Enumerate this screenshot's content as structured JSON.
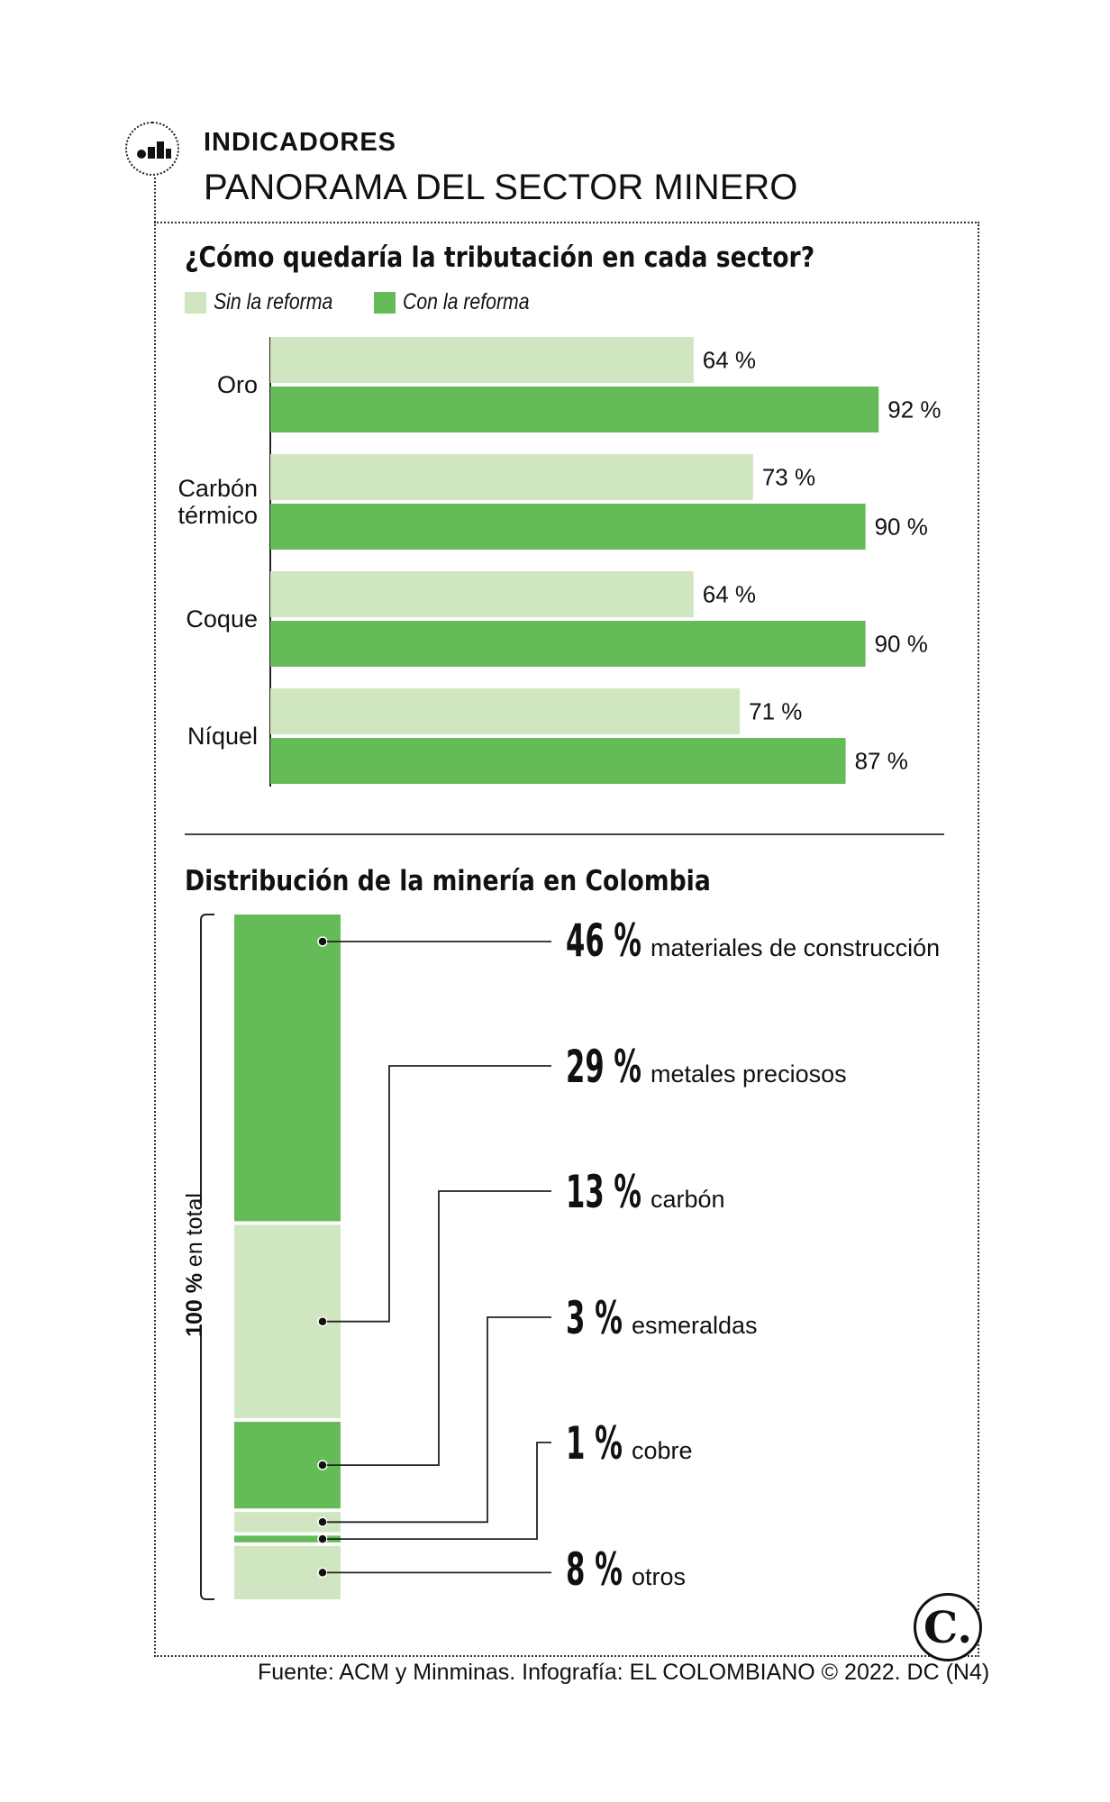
{
  "header": {
    "kicker": "INDICADORES",
    "title": "PANORAMA DEL SECTOR MINERO",
    "icon": "bar-chart-icon"
  },
  "colors": {
    "light_green": "#cfe6c0",
    "dark_green": "#66bb59",
    "text": "#111111"
  },
  "footer": "Fuente: ACM y Minminas. Infografía: EL COLOMBIANO © 2022. DC (N4)",
  "logo": {
    "letter": "C."
  },
  "chart_data": [
    {
      "type": "bar",
      "orientation": "horizontal",
      "title": "¿Cómo quedaría la tributación en cada sector?",
      "categories": [
        "Oro",
        "Carbón térmico",
        "Coque",
        "Níquel"
      ],
      "category_lines": [
        [
          "Oro"
        ],
        [
          "Carbón",
          "térmico"
        ],
        [
          "Coque"
        ],
        [
          "Níquel"
        ]
      ],
      "series": [
        {
          "name": "Sin la reforma",
          "values": [
            64,
            73,
            64,
            71
          ],
          "labels": [
            "64 %",
            "73 %",
            "64 %",
            "71 %"
          ],
          "color": "#cfe6c0"
        },
        {
          "name": "Con la reforma",
          "values": [
            92,
            90,
            90,
            87
          ],
          "labels": [
            "92 %",
            "90 %",
            "90 %",
            "87 %"
          ],
          "color": "#66bb59"
        }
      ],
      "unit": "%",
      "legend_position": "top-left",
      "grid": false
    },
    {
      "type": "bar",
      "orientation": "stacked-vertical",
      "title": "Distribución de la minería en Colombia",
      "total_label": "100 % en total",
      "segments": [
        {
          "pct": "46 %",
          "value": 46,
          "label": "materiales de construcción",
          "color": "#66bb59"
        },
        {
          "pct": "29 %",
          "value": 29,
          "label": "metales preciosos",
          "color": "#cfe6c0"
        },
        {
          "pct": "13 %",
          "value": 13,
          "label": "carbón",
          "color": "#66bb59"
        },
        {
          "pct": "3 %",
          "value": 3,
          "label": "esmeraldas",
          "color": "#cfe6c0"
        },
        {
          "pct": "1 %",
          "value": 1,
          "label": "cobre",
          "color": "#66bb59"
        },
        {
          "pct": "8 %",
          "value": 8,
          "label": "otros",
          "color": "#cfe6c0"
        }
      ],
      "grid": false
    }
  ]
}
